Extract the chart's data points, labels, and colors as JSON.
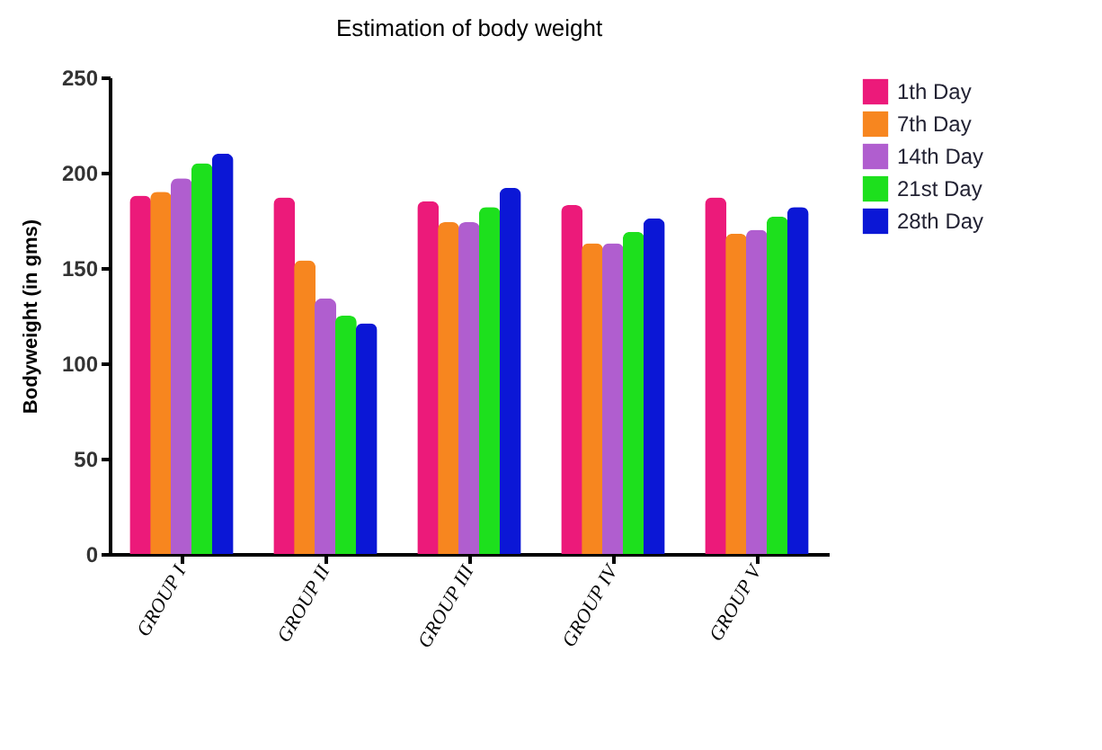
{
  "chart_data": {
    "type": "bar",
    "title": "Estimation of body weight",
    "ylabel": "Bodyweight (in gms)",
    "categories": [
      "GROUP I",
      "GROUP II",
      "GROUP III",
      "GROUP IV",
      "GROUP V"
    ],
    "series": [
      {
        "name": "1th Day",
        "color": "#ec1a7a",
        "values": [
          188,
          187,
          185,
          183,
          187
        ]
      },
      {
        "name": "7th Day",
        "color": "#f7861f",
        "values": [
          190,
          154,
          174,
          163,
          168
        ]
      },
      {
        "name": "14th Day",
        "color": "#b05ecf",
        "values": [
          197,
          134,
          174,
          163,
          170
        ]
      },
      {
        "name": "21st Day",
        "color": "#1de01d",
        "values": [
          205,
          125,
          182,
          169,
          177
        ]
      },
      {
        "name": "28th Day",
        "color": "#0b17d6",
        "values": [
          210,
          121,
          192,
          176,
          182
        ]
      }
    ],
    "ylim": [
      0,
      250
    ],
    "yticks": [
      0,
      50,
      100,
      150,
      200,
      250
    ],
    "grid": false,
    "legend": "top right"
  }
}
